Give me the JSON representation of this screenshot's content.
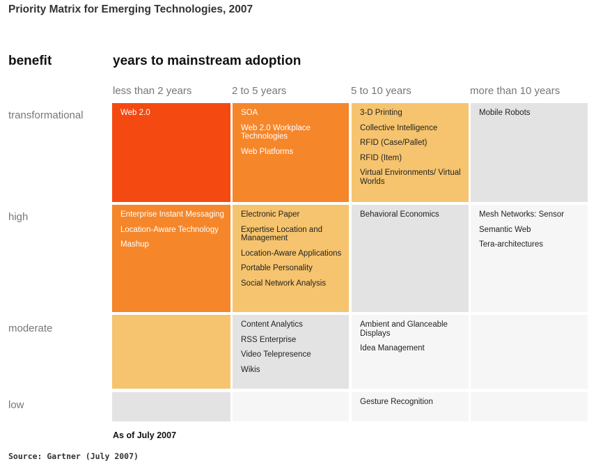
{
  "title": "Priority Matrix for Emerging Technologies, 2007",
  "axis": {
    "row_header": "benefit",
    "col_header": "years to mainstream adoption"
  },
  "columns": [
    "less than 2 years",
    "2 to 5 years",
    "5 to 10 years",
    "more than 10 years"
  ],
  "rows": [
    "transformational",
    "high",
    "moderate",
    "low"
  ],
  "cells": {
    "transformational": [
      [
        "Web 2.0"
      ],
      [
        "SOA",
        "Web 2.0 Workplace Technologies",
        "Web Platforms"
      ],
      [
        "3-D Printing",
        "Collective Intelligence",
        "RFID (Case/Pallet)",
        "RFID (Item)",
        "Virtual Environments/ Virtual Worlds"
      ],
      [
        "Mobile Robots"
      ]
    ],
    "high": [
      [
        "Enterprise Instant Messaging",
        "Location-Aware Technology",
        "Mashup"
      ],
      [
        "Electronic Paper",
        "Expertise Location and Management",
        "Location-Aware Applications",
        "Portable Personality",
        "Social Network Analysis"
      ],
      [
        "Behavioral Economics"
      ],
      [
        "Mesh Networks: Sensor",
        "Semantic Web",
        "Tera-architectures"
      ]
    ],
    "moderate": [
      [],
      [
        "Content Analytics",
        "RSS Enterprise",
        "Video Telepresence",
        "Wikis"
      ],
      [
        "Ambient and Glanceable Displays",
        "Idea Management"
      ],
      []
    ],
    "low": [
      [],
      [],
      [
        "Gesture Recognition"
      ],
      []
    ]
  },
  "colors": {
    "red": "#f44a12",
    "orange": "#f5862a",
    "light_orange": "#f6c46e",
    "gray": "#e3e3e3",
    "pale": "#f6f6f6"
  },
  "as_of": "As of July 2007",
  "source": "Source: Gartner (July 2007)"
}
